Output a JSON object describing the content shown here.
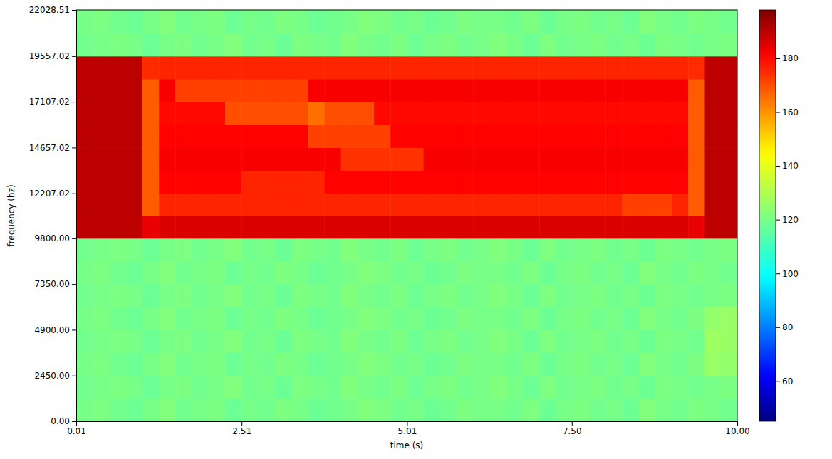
{
  "chart_data": {
    "type": "heatmap",
    "xlabel": "time (s)",
    "ylabel": "frequency (hz)",
    "color": "jet",
    "xlim": [
      0.01,
      10.0
    ],
    "xticks": [
      0.01,
      2.51,
      5.01,
      {
        "value": 7.5,
        "label": "7.50"
      },
      {
        "value": 10.0,
        "label": "10.00"
      }
    ],
    "ylim": [
      0,
      22028.51
    ],
    "yticks": [
      {
        "value": 0,
        "label": "0.00"
      },
      {
        "value": 2450,
        "label": "2450.00"
      },
      {
        "value": 4900,
        "label": "4900.00"
      },
      {
        "value": 7350,
        "label": "7350.00"
      },
      {
        "value": 9800,
        "label": "9800.00"
      },
      12207.02,
      14657.02,
      17107.02,
      19557.02,
      22028.51
    ],
    "x_edges": [
      0.01,
      0.26,
      0.51,
      0.76,
      1.01,
      1.26,
      1.51,
      1.76,
      2.01,
      2.26,
      2.51,
      2.76,
      3.01,
      3.26,
      3.51,
      3.76,
      4.01,
      4.26,
      4.51,
      4.76,
      5.01,
      5.26,
      5.51,
      5.76,
      6.01,
      6.26,
      6.51,
      6.76,
      7.01,
      7.26,
      7.51,
      7.76,
      8.01,
      8.26,
      8.51,
      8.76,
      9.01,
      9.26,
      9.51,
      9.76,
      10.0
    ],
    "y_edges": [
      0,
      1225,
      2450,
      3675,
      4900,
      6125,
      7350,
      8575,
      9800,
      11000,
      12207.02,
      13432,
      14657.02,
      15882,
      17107.02,
      18332,
      19557.02,
      20792,
      22028.51
    ],
    "cells": [
      [
        120,
        121,
        119,
        118,
        120,
        122,
        119,
        120,
        121,
        118,
        120,
        119,
        121,
        120,
        118,
        119,
        120,
        122,
        121,
        119,
        120,
        118,
        119,
        121,
        120,
        120,
        119,
        121,
        118,
        120,
        121,
        119,
        120,
        118,
        122,
        120,
        119,
        121,
        120,
        119
      ],
      [
        119,
        120,
        121,
        120,
        118,
        120,
        121,
        119,
        120,
        122,
        119,
        120,
        118,
        121,
        120,
        119,
        122,
        120,
        119,
        121,
        118,
        120,
        121,
        119,
        120,
        122,
        120,
        118,
        121,
        119,
        120,
        121,
        119,
        120,
        118,
        121,
        120,
        119,
        120,
        121
      ],
      [
        120,
        121,
        119,
        118,
        120,
        122,
        119,
        120,
        121,
        118,
        120,
        119,
        121,
        120,
        118,
        119,
        120,
        122,
        121,
        119,
        120,
        118,
        119,
        121,
        120,
        120,
        119,
        121,
        118,
        120,
        121,
        119,
        120,
        118,
        122,
        120,
        119,
        121,
        126,
        125
      ],
      [
        119,
        120,
        121,
        120,
        118,
        120,
        121,
        119,
        120,
        122,
        119,
        120,
        118,
        121,
        120,
        119,
        122,
        120,
        119,
        121,
        118,
        120,
        121,
        119,
        120,
        122,
        120,
        118,
        121,
        119,
        120,
        121,
        119,
        120,
        118,
        121,
        120,
        119,
        127,
        126
      ],
      [
        120,
        121,
        119,
        118,
        120,
        122,
        119,
        120,
        121,
        118,
        120,
        119,
        121,
        120,
        118,
        119,
        120,
        122,
        121,
        119,
        120,
        118,
        119,
        121,
        120,
        120,
        119,
        121,
        118,
        120,
        121,
        119,
        120,
        118,
        122,
        120,
        119,
        121,
        125,
        126
      ],
      [
        119,
        120,
        121,
        120,
        118,
        120,
        121,
        119,
        120,
        122,
        119,
        120,
        118,
        121,
        120,
        119,
        122,
        120,
        119,
        121,
        118,
        120,
        121,
        119,
        120,
        122,
        120,
        118,
        121,
        119,
        120,
        121,
        119,
        120,
        118,
        121,
        120,
        119,
        120,
        121
      ],
      [
        120,
        121,
        119,
        118,
        120,
        122,
        119,
        120,
        121,
        118,
        120,
        119,
        121,
        120,
        118,
        119,
        120,
        122,
        121,
        119,
        120,
        118,
        119,
        121,
        120,
        120,
        119,
        121,
        118,
        120,
        121,
        119,
        120,
        118,
        122,
        120,
        119,
        121,
        120,
        119
      ],
      [
        119,
        120,
        121,
        120,
        118,
        120,
        121,
        119,
        120,
        122,
        119,
        120,
        118,
        121,
        120,
        119,
        122,
        120,
        119,
        121,
        118,
        120,
        121,
        119,
        120,
        122,
        120,
        118,
        121,
        119,
        120,
        121,
        119,
        120,
        118,
        121,
        120,
        119,
        120,
        121
      ],
      [
        190,
        190,
        190,
        190,
        184,
        186,
        186,
        186,
        186,
        186,
        186,
        186,
        186,
        186,
        186,
        186,
        186,
        186,
        186,
        186,
        186,
        186,
        186,
        186,
        186,
        186,
        186,
        186,
        186,
        186,
        186,
        186,
        186,
        186,
        186,
        186,
        186,
        184,
        190,
        190
      ],
      [
        190,
        190,
        190,
        190,
        168,
        176,
        176,
        176,
        176,
        176,
        176,
        176,
        176,
        176,
        176,
        176,
        176,
        176,
        176,
        176,
        176,
        176,
        176,
        176,
        176,
        176,
        176,
        176,
        176,
        176,
        176,
        176,
        176,
        172,
        172,
        172,
        176,
        168,
        190,
        190
      ],
      [
        190,
        190,
        190,
        190,
        168,
        181,
        181,
        181,
        181,
        181,
        176,
        176,
        176,
        176,
        176,
        181,
        181,
        181,
        181,
        181,
        181,
        181,
        181,
        181,
        181,
        181,
        181,
        181,
        181,
        181,
        181,
        181,
        181,
        181,
        181,
        181,
        181,
        168,
        190,
        190
      ],
      [
        190,
        190,
        190,
        190,
        168,
        182,
        182,
        182,
        182,
        182,
        182,
        182,
        182,
        182,
        182,
        182,
        174,
        174,
        174,
        174,
        174,
        182,
        182,
        182,
        182,
        182,
        182,
        182,
        182,
        182,
        182,
        182,
        182,
        182,
        182,
        182,
        182,
        168,
        190,
        190
      ],
      [
        190,
        190,
        190,
        190,
        168,
        181,
        181,
        181,
        181,
        181,
        181,
        181,
        181,
        181,
        172,
        172,
        172,
        172,
        172,
        181,
        181,
        181,
        181,
        181,
        181,
        181,
        181,
        181,
        181,
        181,
        181,
        181,
        181,
        181,
        181,
        181,
        181,
        168,
        190,
        190
      ],
      [
        190,
        190,
        190,
        190,
        168,
        180,
        180,
        180,
        180,
        170,
        170,
        170,
        170,
        170,
        165,
        170,
        170,
        170,
        180,
        180,
        180,
        180,
        180,
        180,
        180,
        180,
        180,
        180,
        180,
        180,
        180,
        180,
        180,
        180,
        180,
        180,
        180,
        168,
        190,
        190
      ],
      [
        190,
        190,
        190,
        190,
        168,
        182,
        172,
        172,
        172,
        172,
        172,
        172,
        172,
        172,
        182,
        182,
        182,
        182,
        182,
        182,
        182,
        182,
        182,
        182,
        182,
        182,
        182,
        182,
        182,
        182,
        182,
        182,
        182,
        182,
        182,
        182,
        182,
        168,
        190,
        190
      ],
      [
        190,
        190,
        190,
        190,
        175,
        176,
        176,
        176,
        176,
        176,
        176,
        176,
        176,
        176,
        176,
        176,
        176,
        176,
        176,
        176,
        176,
        176,
        176,
        176,
        176,
        176,
        176,
        176,
        176,
        176,
        176,
        176,
        176,
        176,
        176,
        176,
        176,
        175,
        190,
        190
      ],
      [
        119,
        120,
        121,
        120,
        118,
        120,
        121,
        119,
        120,
        122,
        119,
        120,
        118,
        121,
        120,
        119,
        122,
        120,
        119,
        121,
        118,
        120,
        121,
        119,
        120,
        122,
        120,
        118,
        121,
        119,
        120,
        121,
        119,
        120,
        118,
        121,
        120,
        119,
        120,
        121
      ],
      [
        120,
        121,
        119,
        118,
        120,
        122,
        119,
        120,
        121,
        118,
        120,
        119,
        121,
        120,
        118,
        119,
        120,
        122,
        121,
        119,
        120,
        118,
        119,
        121,
        120,
        120,
        119,
        121,
        118,
        120,
        121,
        119,
        120,
        118,
        122,
        120,
        119,
        121,
        120,
        119
      ]
    ],
    "colorbar": {
      "range": [
        45,
        198
      ],
      "ticks": [
        60,
        80,
        100,
        120,
        140,
        160,
        180
      ]
    }
  }
}
